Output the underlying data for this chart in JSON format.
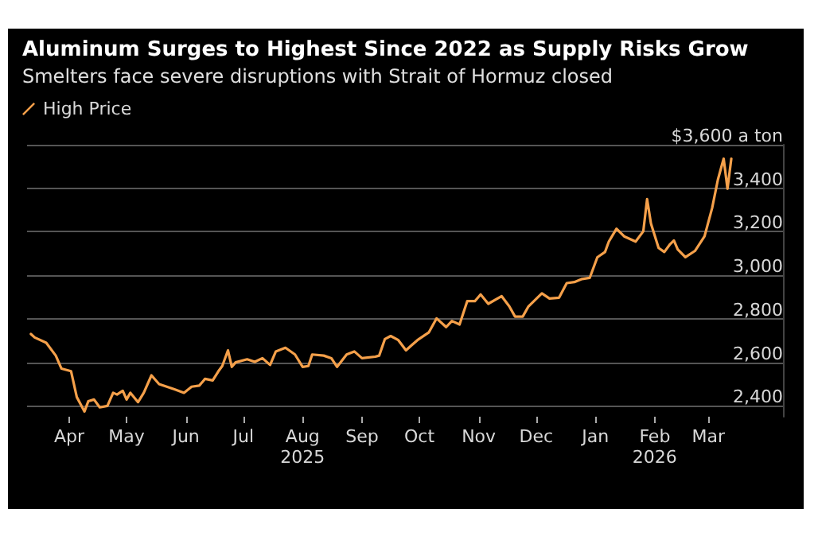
{
  "chart_data": {
    "type": "line",
    "title": "Aluminum Surges to Highest Since 2022 as Supply Risks Grow",
    "subtitle": "Smelters face severe disruptions with Strait of Hormuz closed",
    "x": [
      "2025-03-12",
      "2025-03-14",
      "2025-03-20",
      "2025-03-25",
      "2025-03-28",
      "2025-04-02",
      "2025-04-05",
      "2025-04-09",
      "2025-04-11",
      "2025-04-14",
      "2025-04-17",
      "2025-04-21",
      "2025-04-24",
      "2025-04-26",
      "2025-04-29",
      "2025-05-01",
      "2025-05-03",
      "2025-05-07",
      "2025-05-10",
      "2025-05-14",
      "2025-05-18",
      "2025-05-22",
      "2025-05-26",
      "2025-05-31",
      "2025-06-04",
      "2025-06-08",
      "2025-06-11",
      "2025-06-15",
      "2025-06-18",
      "2025-06-20",
      "2025-06-23",
      "2025-06-25",
      "2025-06-27",
      "2025-07-03",
      "2025-07-07",
      "2025-07-11",
      "2025-07-15",
      "2025-07-18",
      "2025-07-23",
      "2025-07-28",
      "2025-08-01",
      "2025-08-04",
      "2025-08-06",
      "2025-08-12",
      "2025-08-16",
      "2025-08-19",
      "2025-08-24",
      "2025-08-28",
      "2025-09-01",
      "2025-09-08",
      "2025-09-10",
      "2025-09-13",
      "2025-09-16",
      "2025-09-20",
      "2025-09-24",
      "2025-09-27",
      "2025-09-30",
      "2025-10-06",
      "2025-10-10",
      "2025-10-15",
      "2025-10-18",
      "2025-10-22",
      "2025-10-26",
      "2025-10-30",
      "2025-11-02",
      "2025-11-06",
      "2025-11-13",
      "2025-11-17",
      "2025-11-20",
      "2025-11-24",
      "2025-11-27",
      "2025-12-04",
      "2025-12-08",
      "2025-12-13",
      "2025-12-17",
      "2025-12-21",
      "2025-12-25",
      "2025-12-29",
      "2026-01-02",
      "2026-01-06",
      "2026-01-08",
      "2026-01-12",
      "2026-01-16",
      "2026-01-22",
      "2026-01-26",
      "2026-01-28",
      "2026-01-30",
      "2026-02-03",
      "2026-02-06",
      "2026-02-09",
      "2026-02-11",
      "2026-02-13",
      "2026-02-17",
      "2026-02-22",
      "2026-02-27",
      "2026-03-03",
      "2026-03-06",
      "2026-03-09",
      "2026-03-11",
      "2026-03-13"
    ],
    "series": [
      {
        "name": "High Price",
        "color": "#f5a04a",
        "values": [
          2730,
          2714,
          2690,
          2631,
          2571,
          2559,
          2440,
          2374,
          2421,
          2429,
          2393,
          2400,
          2460,
          2452,
          2469,
          2429,
          2460,
          2417,
          2460,
          2540,
          2500,
          2488,
          2476,
          2460,
          2488,
          2493,
          2524,
          2517,
          2559,
          2583,
          2655,
          2579,
          2600,
          2614,
          2602,
          2619,
          2588,
          2650,
          2667,
          2636,
          2579,
          2583,
          2636,
          2631,
          2619,
          2579,
          2636,
          2650,
          2619,
          2626,
          2631,
          2707,
          2721,
          2702,
          2655,
          2679,
          2702,
          2738,
          2802,
          2762,
          2790,
          2774,
          2881,
          2881,
          2912,
          2869,
          2904,
          2857,
          2810,
          2810,
          2857,
          2917,
          2893,
          2897,
          2964,
          2969,
          2983,
          2988,
          3083,
          3107,
          3155,
          3214,
          3179,
          3155,
          3202,
          3350,
          3238,
          3126,
          3107,
          3143,
          3160,
          3119,
          3083,
          3112,
          3179,
          3310,
          3440,
          3536,
          3398,
          3536
        ]
      }
    ],
    "xlim": [
      "2025-03-10",
      "2026-04-09"
    ],
    "xticks": [
      {
        "value": "2025-04-01",
        "label": "Apr"
      },
      {
        "value": "2025-05-01",
        "label": "May"
      },
      {
        "value": "2025-06-01",
        "label": "Jun"
      },
      {
        "value": "2025-07-01",
        "label": "Jul"
      },
      {
        "value": "2025-08-01",
        "label": "Aug\n2025"
      },
      {
        "value": "2025-09-01",
        "label": "Sep"
      },
      {
        "value": "2025-10-01",
        "label": "Oct"
      },
      {
        "value": "2025-11-01",
        "label": "Nov"
      },
      {
        "value": "2025-12-01",
        "label": "Dec"
      },
      {
        "value": "2026-01-01",
        "label": "Jan"
      },
      {
        "value": "2026-02-01",
        "label": "Feb\n2026"
      },
      {
        "value": "2026-03-01",
        "label": "Mar"
      }
    ],
    "ylim": [
      2350,
      3600
    ],
    "yticks": [
      {
        "value": 2400,
        "label": "2,400"
      },
      {
        "value": 2600,
        "label": "2,600"
      },
      {
        "value": 2800,
        "label": "2,800"
      },
      {
        "value": 3000,
        "label": "3,000"
      },
      {
        "value": 3200,
        "label": "3,200"
      },
      {
        "value": 3400,
        "label": "3,400"
      },
      {
        "value": 3600,
        "label": "$3,600 a ton"
      }
    ],
    "grid": "y",
    "legend": "top left",
    "marker": "none",
    "line_style": "solid"
  }
}
